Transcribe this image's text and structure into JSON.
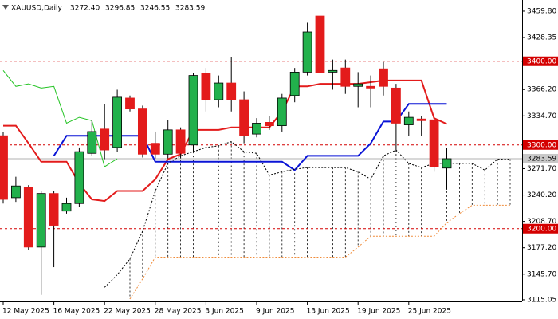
{
  "chart_data": {
    "type": "candlestick",
    "title": "XAUUSD,Daily",
    "header_values": [
      "3272.40",
      "3296.85",
      "3246.55",
      "3283.59"
    ],
    "categories": [
      "12 May 2025",
      null,
      null,
      null,
      "16 May 2025",
      null,
      null,
      null,
      "22 May 2025",
      null,
      null,
      null,
      "28 May 2025",
      null,
      null,
      null,
      "3 Jun 2025",
      null,
      null,
      null,
      "9 Jun 2025",
      null,
      null,
      null,
      "13 Jun 2025",
      null,
      null,
      null,
      "19 Jun 2025",
      null,
      null,
      null,
      "25 Jun 2025",
      null,
      null,
      null,
      null,
      null,
      null,
      null,
      null
    ],
    "candles": {
      "up_color": "#22b14c",
      "down_color": "#e31b1b",
      "open": [
        3311,
        3237,
        3249,
        3178,
        3242,
        3221,
        3230,
        3290,
        3319,
        3297,
        3356,
        3343,
        3302,
        3289,
        3318,
        3300,
        3386,
        3354,
        3374,
        3354,
        3313,
        3327,
        3323,
        3359,
        3387,
        3454,
        3387,
        3392,
        3370,
        3370,
        3391,
        3368,
        3324,
        3331,
        3330,
        3272.4,
        null,
        null,
        null,
        null,
        null
      ],
      "high": [
        3316,
        3262,
        3252,
        3245,
        3245,
        3237,
        3297,
        3330,
        3349,
        3366,
        3359,
        3347,
        3316,
        3330,
        3321,
        3386,
        3392,
        3383,
        3405,
        3364,
        3332,
        3335,
        3361,
        3392,
        3446,
        3454,
        3402,
        3402,
        3387,
        3383,
        3399,
        3373,
        3340,
        3335,
        3332,
        3296.85,
        null,
        null,
        null,
        null,
        null
      ],
      "low": [
        3230,
        3232,
        3175,
        3121,
        3154,
        3218,
        3226,
        3287,
        3283,
        3292,
        3340,
        3285,
        3284,
        3284,
        3284,
        3292,
        3340,
        3345,
        3340,
        3302,
        3309,
        3318,
        3316,
        3351,
        3383,
        3383,
        3366,
        3361,
        3345,
        3345,
        3359,
        3292,
        3311,
        3311,
        3268,
        3246.55,
        null,
        null,
        null,
        null,
        null
      ],
      "close": [
        3235,
        3251,
        3178,
        3242,
        3204,
        3230,
        3292,
        3316,
        3294,
        3357,
        3343,
        3289,
        3289,
        3318,
        3290,
        3383,
        3354,
        3374,
        3354,
        3311,
        3326,
        3323,
        3356,
        3387,
        3435,
        3386,
        3389,
        3370,
        3373,
        3368,
        3370,
        3326,
        3333,
        3329,
        3274,
        3283.59,
        null,
        null,
        null,
        null,
        null
      ]
    },
    "lines": [
      {
        "color": "#e31b1b",
        "width": 2,
        "dotted": false,
        "values": [
          3323,
          3323,
          3302,
          3280,
          3280,
          3280,
          3254,
          3235,
          3233,
          3245,
          3245,
          3245,
          3259,
          3283,
          3289,
          3318,
          3318,
          3318,
          3321,
          3321,
          3321,
          3321,
          3340,
          3370,
          3370,
          3373,
          3373,
          3373,
          3373,
          3375,
          3377,
          3377,
          3377,
          3377,
          3332,
          3325,
          null,
          null,
          null,
          null,
          null
        ]
      },
      {
        "color": "#0a14d6",
        "width": 2,
        "dotted": false,
        "values": [
          null,
          null,
          null,
          null,
          3287,
          3311,
          3311,
          3311,
          3311,
          3311,
          3311,
          3311,
          3280,
          3280,
          3280,
          3280,
          3280,
          3280,
          3280,
          3280,
          3280,
          3280,
          3280,
          3270,
          3287,
          3287,
          3287,
          3287,
          3287,
          3302,
          3328,
          3328,
          3349,
          3349,
          3349,
          3349,
          null,
          null,
          null,
          null,
          null
        ]
      },
      {
        "color": "#22c322",
        "width": 1,
        "dotted": false,
        "values": [
          3389,
          3370,
          3373,
          3368,
          3370,
          3326,
          3333,
          3329,
          3274,
          3283.59,
          null,
          null,
          null,
          null,
          null,
          null,
          null,
          null,
          null,
          null,
          null,
          null,
          null,
          null,
          null,
          null,
          null,
          null,
          null,
          null,
          null,
          null,
          null,
          null,
          null,
          null,
          null,
          null,
          null,
          null,
          null
        ]
      },
      {
        "color": "#000000",
        "width": 1,
        "dotted": true,
        "values": [
          null,
          null,
          null,
          null,
          null,
          null,
          null,
          null,
          3130,
          3145,
          3164,
          3197,
          3245,
          3278,
          3287,
          3292,
          3297,
          3299,
          3304,
          3292,
          3290,
          3264,
          3268,
          3271,
          3273,
          3273,
          3273,
          3273,
          3268,
          3259,
          3287,
          3294,
          3278,
          3273,
          3278,
          3278,
          3278,
          3278,
          3270,
          3283,
          3283
        ]
      },
      {
        "color": "#f08c3a",
        "width": 1,
        "dotted": true,
        "values": [
          null,
          null,
          null,
          null,
          null,
          null,
          null,
          null,
          null,
          null,
          3116,
          3140,
          3166,
          3166,
          3166,
          3166,
          3166,
          3166,
          3166,
          3166,
          3166,
          3166,
          3166,
          3166,
          3166,
          3166,
          3166,
          3166,
          3178,
          3191,
          3191,
          3191,
          3191,
          3191,
          3191,
          3207,
          3218,
          3228,
          3228,
          3228,
          3228
        ]
      }
    ],
    "cloud_hatch": true,
    "levels": [
      {
        "value": 3400,
        "label": "3400.00"
      },
      {
        "value": 3300,
        "label": "3300.00"
      },
      {
        "value": 3200,
        "label": "3200.00"
      }
    ],
    "level_color": "#d40000",
    "current_price": {
      "value": 3283.59,
      "label": "3283.59"
    },
    "ylim": [
      3113.1,
      3473.1
    ],
    "yticks": [
      {
        "value": 3459.8,
        "label": "3459.80"
      },
      {
        "value": 3428.35,
        "label": "3428.35"
      },
      {
        "value": 3366.2,
        "label": "3366.20"
      },
      {
        "value": 3334.7,
        "label": "3334.70"
      },
      {
        "value": 3271.7,
        "label": "3271.70"
      },
      {
        "value": 3240.2,
        "label": "3240.20"
      },
      {
        "value": 3208.7,
        "label": "3208.70"
      },
      {
        "value": 3177.2,
        "label": "3177.20"
      },
      {
        "value": 3145.7,
        "label": "3145.70"
      },
      {
        "value": 3115.05,
        "label": "3115.05"
      }
    ]
  }
}
